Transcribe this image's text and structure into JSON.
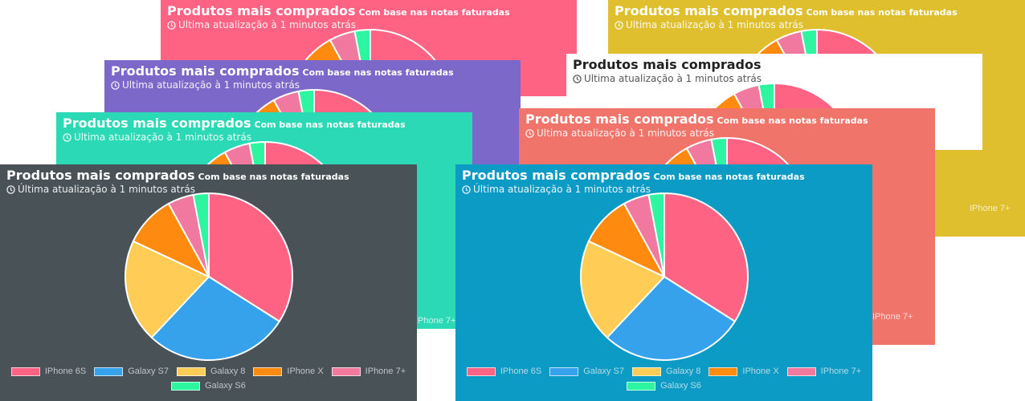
{
  "widget": {
    "title": "Produtos mais comprados",
    "subtitle": "Com base nas notas faturadas",
    "updated": "Última atualização à 1 minutos atrás",
    "updated_clipped": "Ultima atualização à 1 minutos atrás"
  },
  "chart_data": {
    "type": "pie",
    "categories": [
      "IPhone 6S",
      "Galaxy S7",
      "Galaxy 8",
      "IPhone X",
      "IPhone 7+",
      "Galaxy S6"
    ],
    "values": [
      34,
      28,
      20,
      10,
      5,
      3
    ],
    "colors": [
      "#ff6384",
      "#36a2eb",
      "#ffcd56",
      "#ff8a10",
      "#f1799f",
      "#2ef5a0"
    ]
  },
  "cards": [
    {
      "name": "card-pink",
      "bg": "#ff6384"
    },
    {
      "name": "card-yellow",
      "bg": "#dfbf2e"
    },
    {
      "name": "card-purple",
      "bg": "#7b68c8"
    },
    {
      "name": "card-white",
      "bg": "#ffffff"
    },
    {
      "name": "card-teal",
      "bg": "#2bd9b6"
    },
    {
      "name": "card-salmon",
      "bg": "#f07469"
    },
    {
      "name": "card-dark",
      "bg": "#485257"
    },
    {
      "name": "card-blue",
      "bg": "#0c9bc4"
    }
  ],
  "partial_legend_text": "IPhone 7+"
}
